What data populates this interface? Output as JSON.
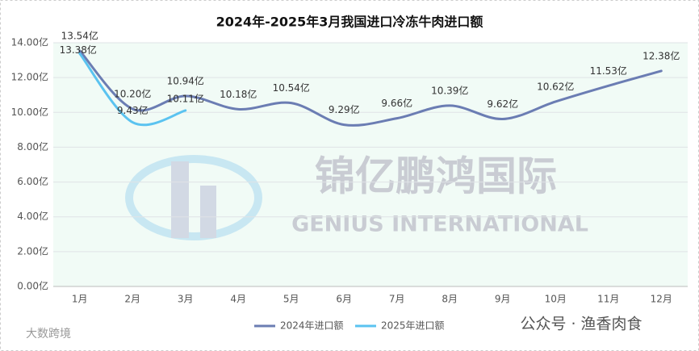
{
  "chart_data": {
    "type": "line",
    "title": "2024年-2025年3月我国进口冷冻牛肉进口额",
    "categories": [
      "1月",
      "2月",
      "3月",
      "4月",
      "5月",
      "6月",
      "7月",
      "8月",
      "9月",
      "10月",
      "11月",
      "12月"
    ],
    "series": [
      {
        "name": "2024年进口额",
        "color": "#6b7db3",
        "values": [
          13.54,
          10.2,
          10.94,
          10.18,
          10.54,
          9.29,
          9.66,
          10.39,
          9.62,
          10.62,
          11.53,
          12.38
        ],
        "value_labels": [
          "13.54亿",
          "10.20亿",
          "10.94亿",
          "10.18亿",
          "10.54亿",
          "9.29亿",
          "9.66亿",
          "10.39亿",
          "9.62亿",
          "10.62亿",
          "11.53亿",
          "12.38亿"
        ]
      },
      {
        "name": "2025年进口额",
        "color": "#5bc3f0",
        "values": [
          13.38,
          9.43,
          10.11,
          null,
          null,
          null,
          null,
          null,
          null,
          null,
          null,
          null
        ],
        "value_labels": [
          "13.38亿",
          "9.43亿",
          "10.11亿",
          null,
          null,
          null,
          null,
          null,
          null,
          null,
          null,
          null
        ]
      }
    ],
    "ylim": [
      0,
      14
    ],
    "yticks": [
      {
        "value": 0,
        "label": "0.00亿"
      },
      {
        "value": 2,
        "label": "2.00亿"
      },
      {
        "value": 4,
        "label": "4.00亿"
      },
      {
        "value": 6,
        "label": "6.00亿"
      },
      {
        "value": 8,
        "label": "8.00亿"
      },
      {
        "value": 10,
        "label": "10.00亿"
      },
      {
        "value": 12,
        "label": "12.00亿"
      },
      {
        "value": 14,
        "label": "14.00亿"
      }
    ],
    "grid": true,
    "legend": "bottom",
    "watermarks": [
      "锦亿鹏鸿国际",
      "GENIUS INTERNATIONAL",
      "公众号 · 渔香肉食",
      "大数跨境"
    ]
  }
}
